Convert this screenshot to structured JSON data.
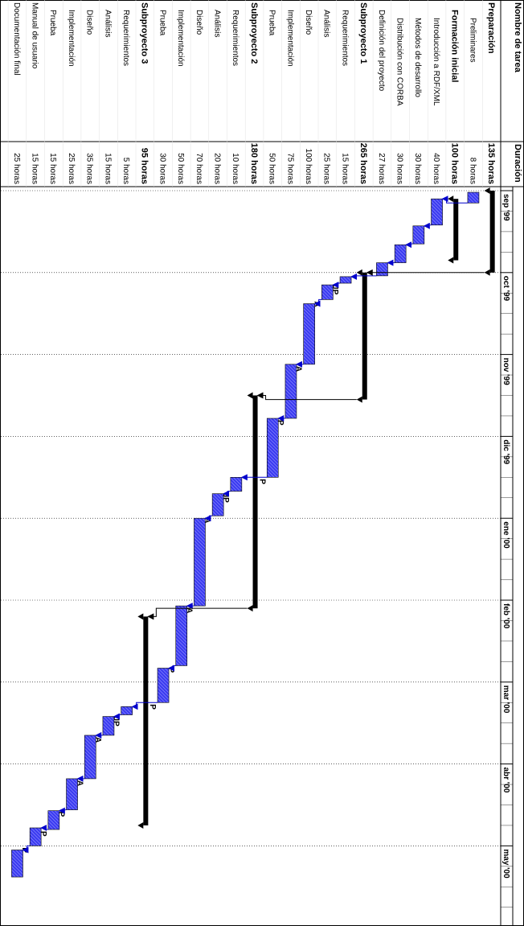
{
  "table": {
    "col_task": "Nombre de tarea",
    "col_duration": "Duración",
    "rows": [
      {
        "name": "Preparación",
        "duration": "135 horas",
        "bold": true,
        "indent": 0
      },
      {
        "name": "Preliminares",
        "duration": "8 horas",
        "bold": false,
        "indent": 2
      },
      {
        "name": "Formación inicial",
        "duration": "100 horas",
        "bold": true,
        "indent": 1
      },
      {
        "name": "Introducción a RDF/XML",
        "duration": "40 horas",
        "bold": false,
        "indent": 2
      },
      {
        "name": "Métodos de desarrollo",
        "duration": "30 horas",
        "bold": false,
        "indent": 2
      },
      {
        "name": "Distribución con CORBA",
        "duration": "30 horas",
        "bold": false,
        "indent": 2
      },
      {
        "name": "Definición del proyecto",
        "duration": "27 horas",
        "bold": false,
        "indent": 1
      },
      {
        "name": "Subproyecto 1",
        "duration": "265 horas",
        "bold": true,
        "indent": 0
      },
      {
        "name": "Requerimientos",
        "duration": "15 horas",
        "bold": false,
        "indent": 1
      },
      {
        "name": "Análisis",
        "duration": "25 horas",
        "bold": false,
        "indent": 1
      },
      {
        "name": "Diseño",
        "duration": "100 horas",
        "bold": false,
        "indent": 1
      },
      {
        "name": "Implementación",
        "duration": "75 horas",
        "bold": false,
        "indent": 1
      },
      {
        "name": "Prueba",
        "duration": "50 horas",
        "bold": false,
        "indent": 1
      },
      {
        "name": "Subproyecto 2",
        "duration": "180 horas",
        "bold": true,
        "indent": 0
      },
      {
        "name": "Requerimientos",
        "duration": "10 horas",
        "bold": false,
        "indent": 1
      },
      {
        "name": "Análisis",
        "duration": "20 horas",
        "bold": false,
        "indent": 1
      },
      {
        "name": "Diseño",
        "duration": "70 horas",
        "bold": false,
        "indent": 1
      },
      {
        "name": "Implementación",
        "duration": "50 horas",
        "bold": false,
        "indent": 1
      },
      {
        "name": "Prueba",
        "duration": "30 horas",
        "bold": false,
        "indent": 1
      },
      {
        "name": "Subproyecto 3",
        "duration": "95 horas",
        "bold": true,
        "indent": 0
      },
      {
        "name": "Requerimientos",
        "duration": "5 horas",
        "bold": false,
        "indent": 1
      },
      {
        "name": "Análisis",
        "duration": "15 horas",
        "bold": false,
        "indent": 1
      },
      {
        "name": "Diseño",
        "duration": "35 horas",
        "bold": false,
        "indent": 1
      },
      {
        "name": "Implementación",
        "duration": "25 horas",
        "bold": false,
        "indent": 1
      },
      {
        "name": "Prueba",
        "duration": "15 horas",
        "bold": false,
        "indent": 1
      },
      {
        "name": "Manual de usuario",
        "duration": "15 horas",
        "bold": false,
        "indent": 0
      },
      {
        "name": "Documentación final",
        "duration": "25 horas",
        "bold": false,
        "indent": 0
      }
    ]
  },
  "timeline": {
    "months": [
      "sep '99",
      "oct '99",
      "nov '99",
      "dic '99",
      "ene '00",
      "feb '00",
      "mar '00",
      "abr '00",
      "may '00"
    ]
  },
  "schedule": {
    "summaries": [
      {
        "row": 0,
        "start": 0.0,
        "end": 1.0
      },
      {
        "row": 2,
        "start": 0.1,
        "end": 0.85
      },
      {
        "row": 7,
        "start": 1.0,
        "end": 2.55
      },
      {
        "row": 13,
        "start": 2.5,
        "end": 5.1
      },
      {
        "row": 19,
        "start": 5.2,
        "end": 7.75
      }
    ],
    "tasks": [
      {
        "row": 1,
        "start": 0.02,
        "end": 0.15,
        "label": ""
      },
      {
        "row": 3,
        "start": 0.1,
        "end": 0.42,
        "label": ""
      },
      {
        "row": 4,
        "start": 0.43,
        "end": 0.65,
        "label": ""
      },
      {
        "row": 5,
        "start": 0.66,
        "end": 0.88,
        "label": ""
      },
      {
        "row": 6,
        "start": 0.88,
        "end": 1.04,
        "label": ""
      },
      {
        "row": 8,
        "start": 1.05,
        "end": 1.13,
        "label": "JP"
      },
      {
        "row": 9,
        "start": 1.15,
        "end": 1.33,
        "label": "A"
      },
      {
        "row": 10,
        "start": 1.38,
        "end": 2.12,
        "label": "A"
      },
      {
        "row": 11,
        "start": 2.12,
        "end": 2.78,
        "label": "P"
      },
      {
        "row": 12,
        "start": 2.78,
        "end": 3.5,
        "label": "P"
      },
      {
        "row": 14,
        "start": 3.5,
        "end": 3.67,
        "label": "JP"
      },
      {
        "row": 15,
        "start": 3.7,
        "end": 3.97,
        "label": "A"
      },
      {
        "row": 16,
        "start": 4.0,
        "end": 5.07,
        "label": "A"
      },
      {
        "row": 17,
        "start": 5.07,
        "end": 5.8,
        "label": "P"
      },
      {
        "row": 18,
        "start": 5.83,
        "end": 6.25,
        "label": "P"
      },
      {
        "row": 20,
        "start": 6.3,
        "end": 6.4,
        "label": "JP"
      },
      {
        "row": 21,
        "start": 6.42,
        "end": 6.65,
        "label": "A"
      },
      {
        "row": 22,
        "start": 6.65,
        "end": 7.18,
        "label": "A"
      },
      {
        "row": 23,
        "start": 7.18,
        "end": 7.56,
        "label": "P"
      },
      {
        "row": 24,
        "start": 7.57,
        "end": 7.8,
        "label": "P"
      },
      {
        "row": 25,
        "start": 7.78,
        "end": 8.0,
        "label": "P"
      },
      {
        "row": 26,
        "start": 8.05,
        "end": 8.38,
        "label": ""
      }
    ]
  }
}
